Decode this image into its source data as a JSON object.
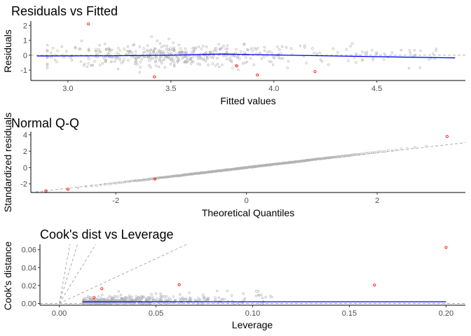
{
  "chart_data": [
    {
      "type": "scatter",
      "title": "Residuals vs Fitted",
      "xlabel": "Fitted values",
      "ylabel": "Residuals",
      "xlim": [
        2.82,
        4.93
      ],
      "ylim": [
        -1.7,
        2.3
      ],
      "xticks": [
        3.0,
        3.5,
        4.0,
        4.5
      ],
      "xtick_labels": [
        "3.0",
        "3.5",
        "4.0",
        "4.5"
      ],
      "yticks": [
        -1,
        0,
        1,
        2
      ],
      "ytick_labels": [
        "-1",
        "0",
        "1",
        "2"
      ],
      "reference_line": {
        "y": 0,
        "style": "dashed"
      },
      "smooth_line": {
        "x": [
          2.85,
          3.2,
          3.5,
          3.75,
          3.9,
          4.2,
          4.6,
          4.88
        ],
        "y": [
          -0.05,
          -0.04,
          0.0,
          0.08,
          0.04,
          -0.03,
          -0.12,
          -0.18
        ],
        "color": "#0000ff"
      },
      "highlighted_points": {
        "x": [
          3.1,
          3.42,
          3.82,
          3.92,
          4.2
        ],
        "y": [
          2.1,
          -1.45,
          -0.72,
          -1.33,
          -1.1
        ],
        "color": "#ff0000"
      },
      "points_note": "approx. 500 grey open points, most with fitted values 3.0–4.0 and residuals between -1 and 1",
      "grid": false
    },
    {
      "type": "scatter",
      "title": "Normal Q-Q",
      "xlabel": "Theoretical Quantiles",
      "ylabel": "Standardized residuals",
      "xlim": [
        -3.3,
        3.35
      ],
      "ylim": [
        -3.05,
        4.4
      ],
      "xticks": [
        -2,
        0,
        2
      ],
      "xtick_labels": [
        "-2",
        "0",
        "2"
      ],
      "yticks": [
        -2,
        0,
        2,
        4
      ],
      "ytick_labels": [
        "-2",
        "0",
        "2",
        "4"
      ],
      "reference_line": {
        "x": [
          -3.3,
          3.35
        ],
        "y": [
          -3.05,
          3.05
        ],
        "style": "dashed"
      },
      "highlighted_points": {
        "x": [
          -3.07,
          -2.73,
          -1.4,
          3.07
        ],
        "y": [
          -2.85,
          -2.65,
          -1.4,
          3.8
        ],
        "color": "#ff0000"
      },
      "points_note": "approx. 500 grey open points lying along the reference line",
      "grid": false
    },
    {
      "type": "scatter",
      "title": "Cook's dist vs Leverage",
      "xlabel": "Leverage",
      "ylabel": "Cook's distance",
      "xlim": [
        -0.01,
        0.21
      ],
      "ylim": [
        -0.002,
        0.066
      ],
      "xticks": [
        0.0,
        0.05,
        0.1,
        0.15,
        0.2
      ],
      "xtick_labels": [
        "0.00",
        "0.05",
        "0.10",
        "0.15",
        "0.20"
      ],
      "yticks": [
        0.0,
        0.02,
        0.04,
        0.06
      ],
      "ytick_labels": [
        "0.00",
        "0.02",
        "0.04",
        "0.06"
      ],
      "reference_line": {
        "y": 0,
        "style": "dashed"
      },
      "contour_slopes": [
        12,
        7,
        3.5,
        1
      ],
      "smooth_line": {
        "x": [
          0.012,
          0.2
        ],
        "y": [
          0.0018,
          0.0018
        ],
        "color": "#0000ff"
      },
      "highlighted_points": {
        "x": [
          0.018,
          0.022,
          0.062,
          0.163,
          0.2
        ],
        "y": [
          0.0065,
          0.0165,
          0.021,
          0.0205,
          0.0625
        ],
        "color": "#ff0000"
      },
      "points_note": "approx. 500 grey open points with leverage 0.01–0.11 and Cook's distance below 0.015",
      "grid": false
    }
  ]
}
